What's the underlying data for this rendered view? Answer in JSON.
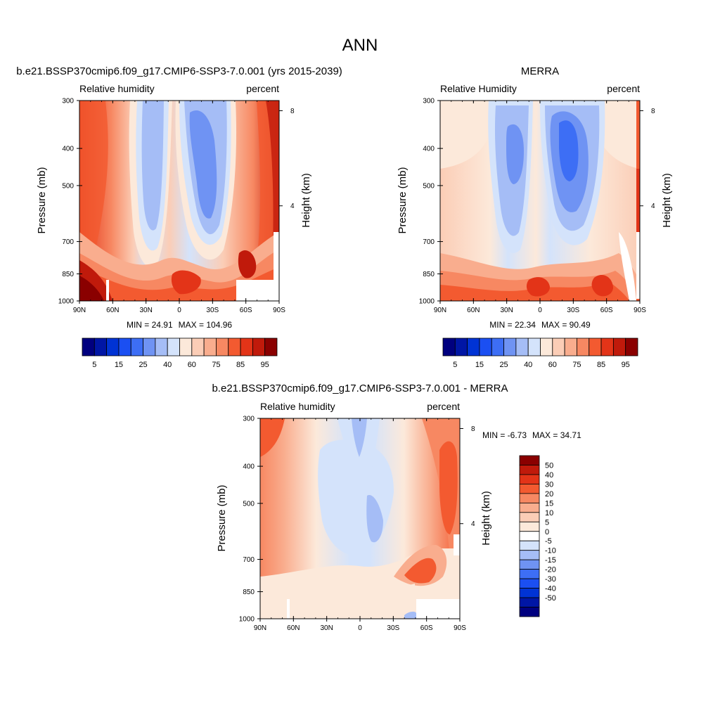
{
  "figure": {
    "title": "ANN"
  },
  "colors": {
    "rh_levels": [
      "#00007f",
      "#0016a5",
      "#0033d4",
      "#1b4ff2",
      "#3d6ef5",
      "#6f93f3",
      "#a5bdf6",
      "#d4e3fb",
      "#fce9da",
      "#fbcdb6",
      "#f9ad8e",
      "#f78862",
      "#f35a30",
      "#e33418",
      "#c01a0b",
      "#8a0000"
    ],
    "diff_levels": [
      "#00007f",
      "#0016a5",
      "#0033d4",
      "#1b4ff2",
      "#3d6ef5",
      "#6f93f3",
      "#a5bdf6",
      "#d4e3fb",
      "#ffffff",
      "#fce9da",
      "#fbcdb6",
      "#f9ad8e",
      "#f78862",
      "#f35a30",
      "#e33418",
      "#c01a0b",
      "#8a0000"
    ]
  },
  "chart_data": [
    {
      "type": "heatmap",
      "title": "b.e21.BSSP370cmip6.f09_g17.CMIP6-SSP3-7.0.001 (yrs 2015-2039)",
      "left_label": "Relative humidity",
      "right_label": "percent",
      "ylabel": "Pressure (mb)",
      "y2label": "Height (km)",
      "xticks": [
        "90N",
        "60N",
        "30N",
        "0",
        "30S",
        "60S",
        "90S"
      ],
      "yticks": [
        "300",
        "400",
        "500",
        "700",
        "850",
        "1000"
      ],
      "y2ticks": [
        "8",
        "4"
      ],
      "min_label": "MIN = ",
      "min": "24.91",
      "max_label": "MAX = ",
      "max": "104.96",
      "colorbar_labels": [
        "5",
        "15",
        "25",
        "40",
        "60",
        "75",
        "85",
        "95"
      ]
    },
    {
      "type": "heatmap",
      "title": "MERRA",
      "left_label": "Relative Humidity",
      "right_label": "percent",
      "ylabel": "Pressure (mb)",
      "y2label": "Height (km)",
      "xticks": [
        "90N",
        "60N",
        "30N",
        "0",
        "30S",
        "60S",
        "90S"
      ],
      "yticks": [
        "300",
        "400",
        "500",
        "700",
        "850",
        "1000"
      ],
      "y2ticks": [
        "8",
        "4"
      ],
      "min_label": "MIN = ",
      "min": "22.34",
      "max_label": "MAX = ",
      "max": "90.49",
      "colorbar_labels": [
        "5",
        "15",
        "25",
        "40",
        "60",
        "75",
        "85",
        "95"
      ]
    },
    {
      "type": "heatmap",
      "title": "b.e21.BSSP370cmip6.f09_g17.CMIP6-SSP3-7.0.001 - MERRA",
      "left_label": "Relative humidity",
      "right_label": "percent",
      "ylabel": "Pressure (mb)",
      "y2label": "Height (km)",
      "xticks": [
        "90N",
        "60N",
        "30N",
        "0",
        "30S",
        "60S",
        "90S"
      ],
      "yticks": [
        "300",
        "400",
        "500",
        "700",
        "850",
        "1000"
      ],
      "y2ticks": [
        "8",
        "4"
      ],
      "min_label": "MIN = ",
      "min": "-6.73",
      "max_label": "MAX = ",
      "max": "34.71",
      "colorbar_labels": [
        "50",
        "40",
        "30",
        "20",
        "15",
        "10",
        "5",
        "0",
        "-5",
        "-10",
        "-15",
        "-20",
        "-30",
        "-40",
        "-50"
      ]
    }
  ]
}
